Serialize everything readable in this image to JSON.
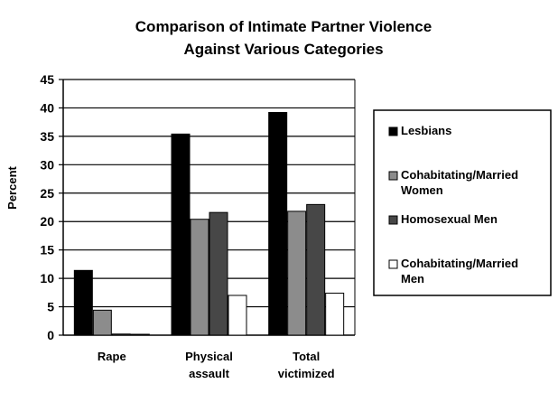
{
  "chart_data": {
    "type": "bar",
    "title_lines": [
      "Comparison of Intimate Partner Violence",
      "Against Various Categories"
    ],
    "xlabel": "",
    "ylabel": "Percent",
    "ylim": [
      0,
      45
    ],
    "yticks": [
      0,
      5,
      10,
      15,
      20,
      25,
      30,
      35,
      40,
      45
    ],
    "grid": true,
    "legend_position": "right",
    "categories": [
      [
        "Rape"
      ],
      [
        "Physical",
        "assault"
      ],
      [
        "Total",
        "victimized"
      ]
    ],
    "series": [
      {
        "name": [
          "Lesbians"
        ],
        "color": "#000000",
        "values": [
          11.4,
          35.4,
          39.2
        ]
      },
      {
        "name": [
          "Cohabitating/Married",
          "Women"
        ],
        "color": "#8c8c8c",
        "values": [
          4.4,
          20.4,
          21.8
        ]
      },
      {
        "name": [
          "Homosexual Men"
        ],
        "color": "#474747",
        "values": [
          0.2,
          21.6,
          23.0
        ]
      },
      {
        "name": [
          "Cohabitating/Married",
          "Men"
        ],
        "color": "#ffffff",
        "values": [
          0.1,
          7.0,
          7.4
        ]
      }
    ]
  }
}
